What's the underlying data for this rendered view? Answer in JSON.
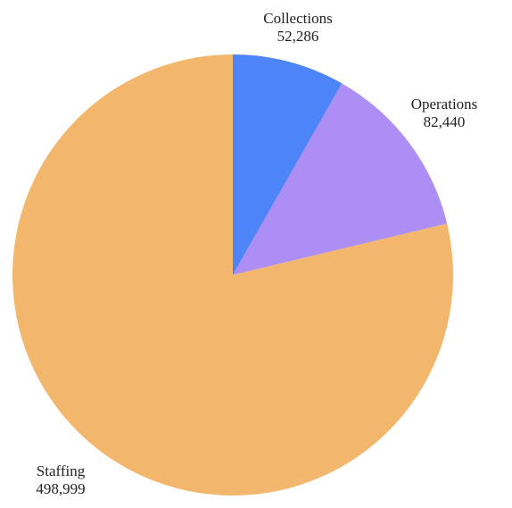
{
  "chart_data": {
    "type": "pie",
    "start_angle": "top (12 o'clock)",
    "direction": "clockwise",
    "slices": [
      {
        "label": "Collections",
        "value_text": "52,286",
        "value": 52286,
        "color": "#4d84f7"
      },
      {
        "label": "Operations",
        "value_text": "82,440",
        "value": 82440,
        "color": "#ad8ef5"
      },
      {
        "label": "Staffing",
        "value_text": "498,999",
        "value": 498999,
        "color": "#f2b76d"
      }
    ]
  }
}
